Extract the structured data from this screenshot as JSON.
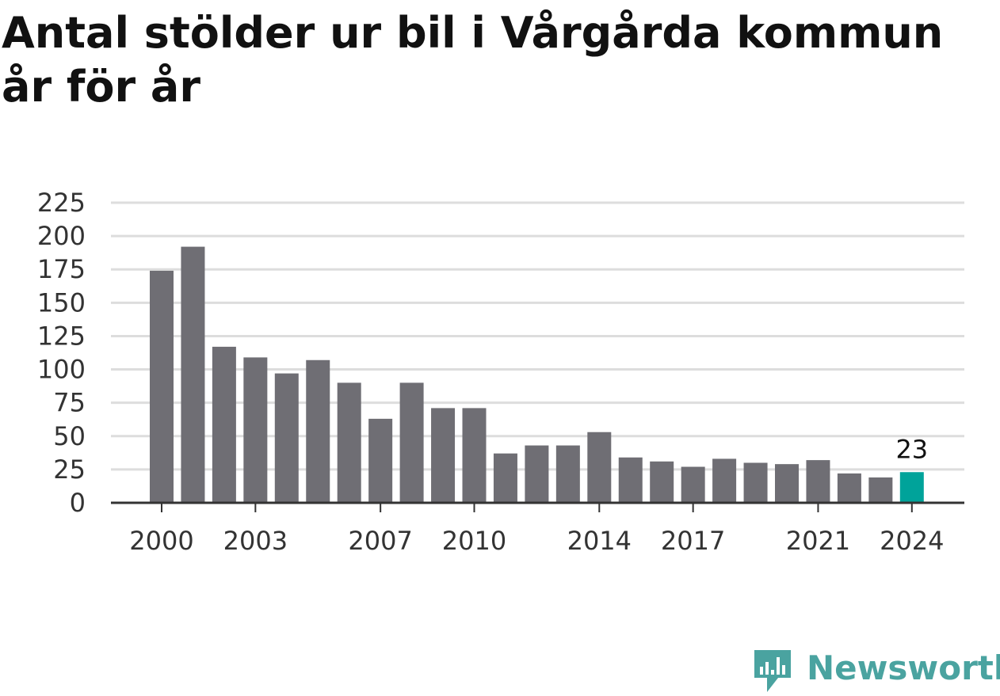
{
  "title": "Antal stölder ur bil i Vårgårda kommun år för år",
  "brand": {
    "name": "Newsworthy",
    "color": "#4aa3a0",
    "icon": "newsworthy-logo-icon"
  },
  "colors": {
    "bar": "#6f6e74",
    "highlight": "#00a39a",
    "grid": "#dddddd",
    "axis": "#333333"
  },
  "chart_data": {
    "type": "bar",
    "categories": [
      "2000",
      "2001",
      "2002",
      "2003",
      "2004",
      "2005",
      "2006",
      "2007",
      "2008",
      "2009",
      "2010",
      "2011",
      "2012",
      "2013",
      "2014",
      "2015",
      "2016",
      "2017",
      "2018",
      "2019",
      "2020",
      "2021",
      "2022",
      "2023",
      "2024"
    ],
    "values": [
      174,
      192,
      117,
      109,
      97,
      107,
      90,
      63,
      90,
      71,
      71,
      37,
      43,
      43,
      53,
      34,
      31,
      27,
      33,
      30,
      29,
      32,
      22,
      19,
      23
    ],
    "highlight_index": 24,
    "highlight_label": "23",
    "x_tick_labels": [
      "2000",
      "2003",
      "2007",
      "2010",
      "2014",
      "2017",
      "2021",
      "2024"
    ],
    "y_ticks": [
      0,
      25,
      50,
      75,
      100,
      125,
      150,
      175,
      200,
      225
    ],
    "ylim": [
      0,
      225
    ],
    "grid": true,
    "xlabel": "",
    "ylabel": ""
  }
}
